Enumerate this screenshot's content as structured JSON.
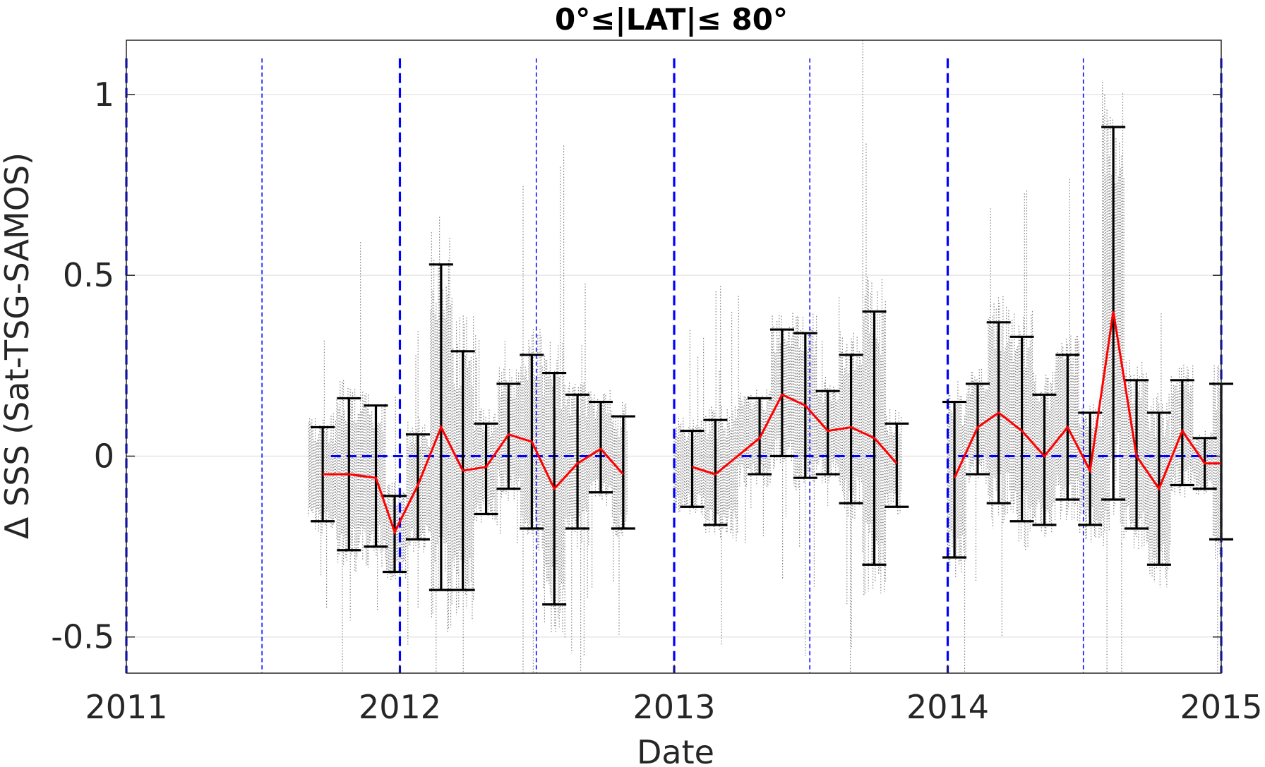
{
  "chart_data": {
    "type": "scatter",
    "title": "0°≤|LAT|≤ 80°",
    "xlabel": "Date",
    "ylabel": "Δ SSS (Sat-TSG-SAMOS)",
    "xlim": [
      "2011-01-01",
      "2015-01-01"
    ],
    "ylim": [
      -0.6,
      1.15
    ],
    "grid": "horizontal",
    "x_ticks": [
      "2011",
      "2012",
      "2013",
      "2014",
      "2015"
    ],
    "y_ticks": [
      -0.5,
      0,
      0.5,
      1
    ],
    "y_tick_labels": [
      "-0.5",
      "0",
      "0.5",
      "1"
    ],
    "colors": {
      "scatter": "#808080",
      "mean_line": "#ff0000",
      "error_bars": "#000000",
      "reference_lines": "#0000ff"
    },
    "reference_lines": {
      "year_boundaries": [
        "2011-01-01",
        "2012-01-01",
        "2013-01-01",
        "2014-01-01",
        "2015-01-01"
      ],
      "mid_years": [
        "2011-07-01",
        "2012-07-01",
        "2013-07-01",
        "2014-07-01"
      ],
      "zero_line_segments": [
        [
          "2011-10-01",
          "2012-10-01"
        ],
        [
          "2013-04-01",
          "2013-10-01"
        ],
        [
          "2014-01-15",
          "2015-01-01"
        ]
      ]
    },
    "series": [
      {
        "type": "errorbar",
        "points": [
          {
            "date": "2011-09-20",
            "mean": -0.05,
            "lo": -0.18,
            "hi": 0.08
          },
          {
            "date": "2011-10-25",
            "mean": -0.05,
            "lo": -0.26,
            "hi": 0.16
          },
          {
            "date": "2011-11-30",
            "mean": -0.06,
            "lo": -0.25,
            "hi": 0.14
          },
          {
            "date": "2011-12-25",
            "mean": -0.21,
            "lo": -0.32,
            "hi": -0.11
          },
          {
            "date": "2012-01-25",
            "mean": -0.08,
            "lo": -0.23,
            "hi": 0.06
          },
          {
            "date": "2012-02-25",
            "mean": 0.08,
            "lo": -0.37,
            "hi": 0.53
          },
          {
            "date": "2012-03-25",
            "mean": -0.04,
            "lo": -0.37,
            "hi": 0.29
          },
          {
            "date": "2012-04-25",
            "mean": -0.03,
            "lo": -0.16,
            "hi": 0.09
          },
          {
            "date": "2012-05-25",
            "mean": 0.06,
            "lo": -0.09,
            "hi": 0.2
          },
          {
            "date": "2012-06-25",
            "mean": 0.04,
            "lo": -0.2,
            "hi": 0.28
          },
          {
            "date": "2012-07-25",
            "mean": -0.09,
            "lo": -0.41,
            "hi": 0.23
          },
          {
            "date": "2012-08-25",
            "mean": -0.02,
            "lo": -0.2,
            "hi": 0.17
          },
          {
            "date": "2012-09-25",
            "mean": 0.02,
            "lo": -0.1,
            "hi": 0.15
          },
          {
            "date": "2012-10-25",
            "mean": -0.05,
            "lo": -0.2,
            "hi": 0.11
          },
          {
            "date": "2013-01-25",
            "mean": -0.03,
            "lo": -0.14,
            "hi": 0.07
          },
          {
            "date": "2013-02-25",
            "mean": -0.05,
            "lo": -0.19,
            "hi": 0.1
          },
          {
            "date": "2013-04-25",
            "mean": 0.05,
            "lo": -0.05,
            "hi": 0.16
          },
          {
            "date": "2013-05-25",
            "mean": 0.17,
            "lo": 0.0,
            "hi": 0.35
          },
          {
            "date": "2013-06-25",
            "mean": 0.14,
            "lo": -0.06,
            "hi": 0.34
          },
          {
            "date": "2013-07-25",
            "mean": 0.07,
            "lo": -0.05,
            "hi": 0.18
          },
          {
            "date": "2013-08-25",
            "mean": 0.08,
            "lo": -0.13,
            "hi": 0.28
          },
          {
            "date": "2013-09-25",
            "mean": 0.05,
            "lo": -0.3,
            "hi": 0.4
          },
          {
            "date": "2013-10-25",
            "mean": -0.02,
            "lo": -0.14,
            "hi": 0.09
          },
          {
            "date": "2014-01-10",
            "mean": -0.06,
            "lo": -0.28,
            "hi": 0.15
          },
          {
            "date": "2014-02-10",
            "mean": 0.08,
            "lo": -0.05,
            "hi": 0.2
          },
          {
            "date": "2014-03-10",
            "mean": 0.12,
            "lo": -0.13,
            "hi": 0.37
          },
          {
            "date": "2014-04-10",
            "mean": 0.07,
            "lo": -0.18,
            "hi": 0.33
          },
          {
            "date": "2014-05-10",
            "mean": 0.0,
            "lo": -0.19,
            "hi": 0.17
          },
          {
            "date": "2014-06-10",
            "mean": 0.08,
            "lo": -0.12,
            "hi": 0.28
          },
          {
            "date": "2014-07-10",
            "mean": -0.04,
            "lo": -0.19,
            "hi": 0.12
          },
          {
            "date": "2014-08-10",
            "mean": 0.4,
            "lo": -0.12,
            "hi": 0.91
          },
          {
            "date": "2014-09-10",
            "mean": 0.0,
            "lo": -0.2,
            "hi": 0.21
          },
          {
            "date": "2014-10-10",
            "mean": -0.09,
            "lo": -0.3,
            "hi": 0.12
          },
          {
            "date": "2014-11-10",
            "mean": 0.07,
            "lo": -0.08,
            "hi": 0.21
          },
          {
            "date": "2014-12-10",
            "mean": -0.02,
            "lo": -0.09,
            "hi": 0.05
          },
          {
            "date": "2015-01-01",
            "mean": -0.02,
            "lo": -0.23,
            "hi": 0.2
          }
        ]
      }
    ],
    "scatter_clusters": [
      {
        "start": "2011-09-01",
        "end": "2012-10-31"
      },
      {
        "start": "2013-01-01",
        "end": "2013-10-31"
      },
      {
        "start": "2014-01-01",
        "end": "2014-12-31"
      }
    ]
  }
}
